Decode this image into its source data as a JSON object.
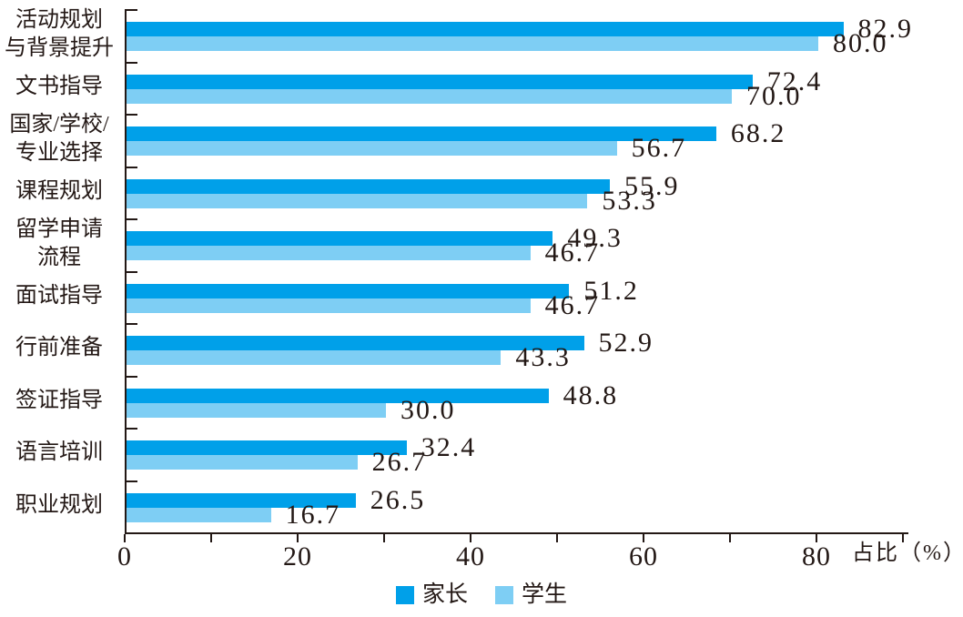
{
  "chart_data": {
    "type": "bar",
    "orientation": "horizontal",
    "title": "",
    "xlabel": "占比（%）",
    "ylabel": "",
    "xlim": [
      0,
      90
    ],
    "x_major_ticks": [
      0,
      20,
      40,
      60,
      80
    ],
    "x_minor_tick_step": 10,
    "grid": false,
    "legend_position": "bottom-center",
    "value_labels_shown": true,
    "value_label_decimals": 1,
    "categories": [
      [
        "活动规划",
        "与背景提升"
      ],
      [
        "文书指导"
      ],
      [
        "国家/学校/",
        "专业选择"
      ],
      [
        "课程规划"
      ],
      [
        "留学申请",
        "流程"
      ],
      [
        "面试指导"
      ],
      [
        "行前准备"
      ],
      [
        "签证指导"
      ],
      [
        "语言培训"
      ],
      [
        "职业规划"
      ]
    ],
    "series": [
      {
        "name": "家长",
        "color": "#00A0E9",
        "values": [
          82.9,
          72.4,
          68.2,
          55.9,
          49.3,
          51.2,
          52.9,
          48.8,
          32.4,
          26.5
        ]
      },
      {
        "name": "学生",
        "color": "#7ECEF4",
        "values": [
          80.0,
          70.0,
          56.7,
          53.3,
          46.7,
          46.7,
          43.3,
          30.0,
          26.7,
          16.7
        ]
      }
    ]
  },
  "colors": {
    "bar_parent": "#00A0E9",
    "bar_student": "#7ECEF4",
    "text": "#231815",
    "axis": "#231815",
    "background": "#FFFFFF"
  }
}
